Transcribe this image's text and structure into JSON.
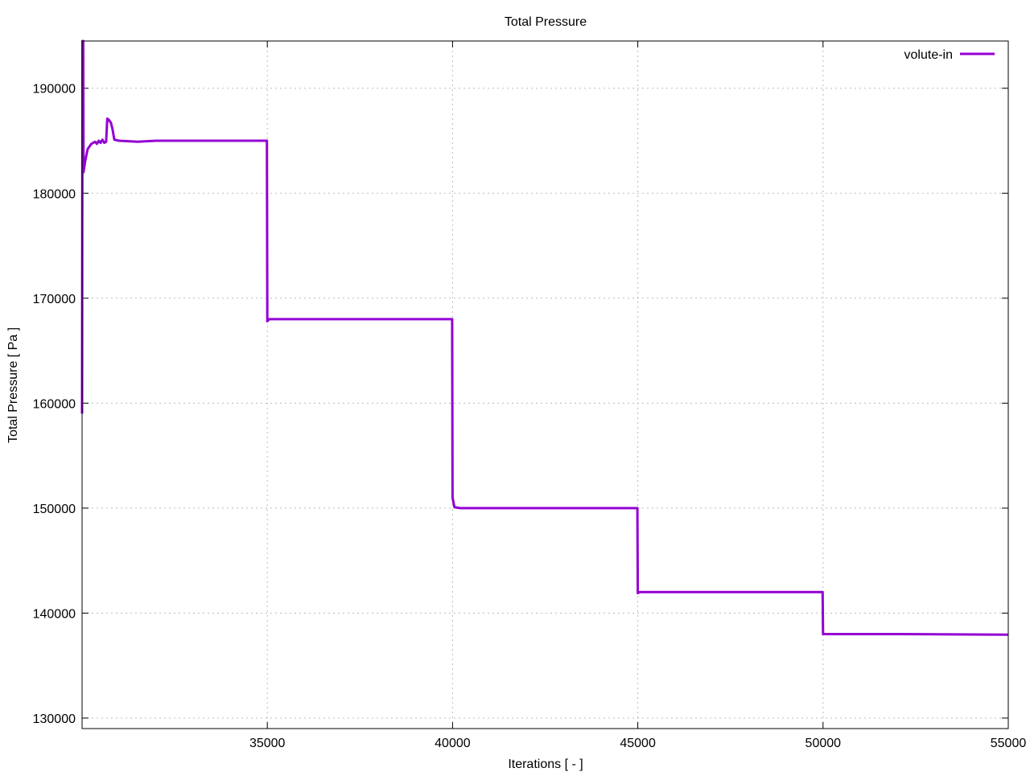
{
  "chart_data": {
    "type": "line",
    "title": "Total Pressure",
    "xlabel": "Iterations [ - ]",
    "ylabel": "Total Pressure [ Pa ]",
    "xlim": [
      30000,
      55000
    ],
    "ylim": [
      129000,
      194500
    ],
    "x_ticks": [
      35000,
      40000,
      45000,
      50000,
      55000
    ],
    "y_ticks": [
      130000,
      140000,
      150000,
      160000,
      170000,
      180000,
      190000
    ],
    "grid": true,
    "legend_position": "top-right",
    "series": [
      {
        "name": "volute-in",
        "color": "#9400d3",
        "points": [
          [
            30000,
            159000
          ],
          [
            30010,
            194500
          ],
          [
            30030,
            194500
          ],
          [
            30040,
            182000
          ],
          [
            30080,
            183000
          ],
          [
            30150,
            184200
          ],
          [
            30250,
            184700
          ],
          [
            30350,
            184900
          ],
          [
            30400,
            184700
          ],
          [
            30450,
            185000
          ],
          [
            30500,
            184800
          ],
          [
            30550,
            185100
          ],
          [
            30600,
            184800
          ],
          [
            30650,
            184900
          ],
          [
            30680,
            187100
          ],
          [
            30720,
            187000
          ],
          [
            30780,
            186700
          ],
          [
            30820,
            186100
          ],
          [
            30870,
            185100
          ],
          [
            31000,
            185000
          ],
          [
            31500,
            184900
          ],
          [
            32000,
            185000
          ],
          [
            33000,
            185000
          ],
          [
            34000,
            185000
          ],
          [
            34990,
            185000
          ],
          [
            35000,
            167800
          ],
          [
            35050,
            168000
          ],
          [
            36000,
            168000
          ],
          [
            38000,
            168000
          ],
          [
            39990,
            168000
          ],
          [
            40000,
            151000
          ],
          [
            40050,
            150100
          ],
          [
            40200,
            150000
          ],
          [
            42000,
            150000
          ],
          [
            44990,
            150000
          ],
          [
            45000,
            141900
          ],
          [
            45050,
            142000
          ],
          [
            47000,
            142000
          ],
          [
            49990,
            142000
          ],
          [
            50000,
            138000
          ],
          [
            50050,
            138000
          ],
          [
            52000,
            138000
          ],
          [
            55000,
            137950
          ]
        ]
      }
    ]
  }
}
